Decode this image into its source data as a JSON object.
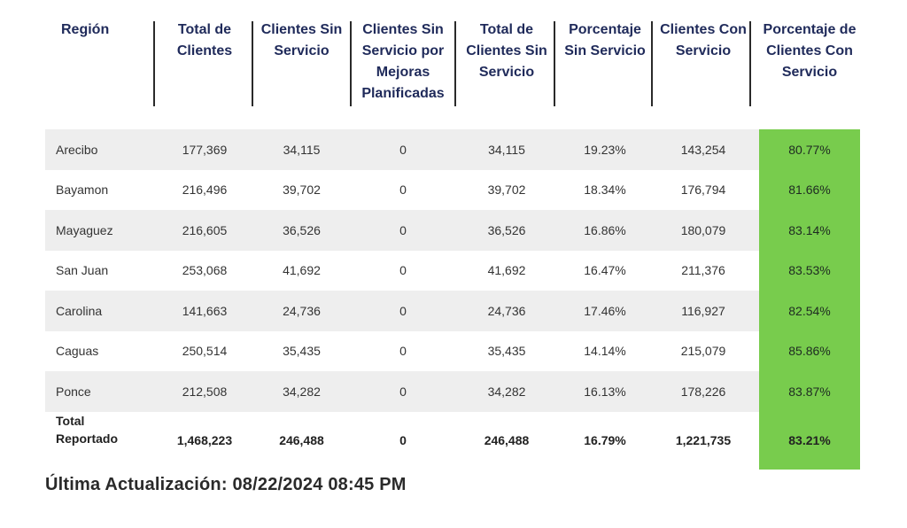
{
  "columns": [
    "Región",
    "Total de Clientes",
    "Clientes Sin Servicio",
    "Clientes Sin Servicio por Mejoras Planificadas",
    "Total de Clientes Sin Servicio",
    "Porcentaje Sin Servicio",
    "Clientes Con Servicio",
    "Porcentaje de Clientes Con Servicio"
  ],
  "rows": [
    [
      "Arecibo",
      "177,369",
      "34,115",
      "0",
      "34,115",
      "19.23%",
      "143,254",
      "80.77%"
    ],
    [
      "Bayamon",
      "216,496",
      "39,702",
      "0",
      "39,702",
      "18.34%",
      "176,794",
      "81.66%"
    ],
    [
      "Mayaguez",
      "216,605",
      "36,526",
      "0",
      "36,526",
      "16.86%",
      "180,079",
      "83.14%"
    ],
    [
      "San Juan",
      "253,068",
      "41,692",
      "0",
      "41,692",
      "16.47%",
      "211,376",
      "83.53%"
    ],
    [
      "Carolina",
      "141,663",
      "24,736",
      "0",
      "24,736",
      "17.46%",
      "116,927",
      "82.54%"
    ],
    [
      "Caguas",
      "250,514",
      "35,435",
      "0",
      "35,435",
      "14.14%",
      "215,079",
      "85.86%"
    ],
    [
      "Ponce",
      "212,508",
      "34,282",
      "0",
      "34,282",
      "16.13%",
      "178,226",
      "83.87%"
    ]
  ],
  "total": {
    "label_line1": "Total",
    "label_line2": "Reportado",
    "values": [
      "1,468,223",
      "246,488",
      "0",
      "246,488",
      "16.79%",
      "1,221,735",
      "83.21%"
    ]
  },
  "footer": "Última Actualización: 08/22/2024 08:45 PM",
  "colors": {
    "header_text": "#1f2a5a",
    "row_shade": "#eeeeee",
    "highlight_green": "#78cc4d"
  }
}
